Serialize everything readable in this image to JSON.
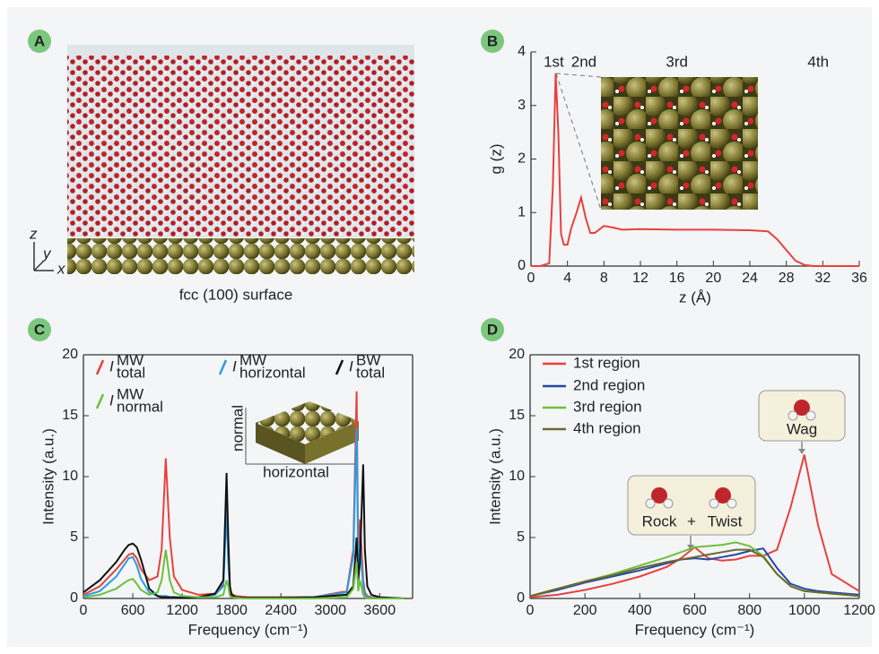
{
  "panels": {
    "labels": [
      "A",
      "B",
      "C",
      "D"
    ],
    "a": {
      "caption": "fcc (100) surface",
      "axes": [
        "z",
        "y",
        "x"
      ]
    }
  },
  "chart_data": [
    {
      "type": "line",
      "xlabel": "z (Å)",
      "ylabel": "g (z)",
      "color": "#e8413c",
      "annotations": [
        "1st",
        "2nd",
        "3rd",
        "4th"
      ],
      "x": [
        0,
        1,
        2,
        2.4,
        2.7,
        3.0,
        3.3,
        3.6,
        4.0,
        4.4,
        5.0,
        5.5,
        6.0,
        6.5,
        7.0,
        8.0,
        9.0,
        10,
        12,
        16,
        20,
        24,
        26,
        27,
        28,
        29,
        30,
        31,
        32,
        36
      ],
      "values": [
        0,
        0,
        0.05,
        1.5,
        3.6,
        2.5,
        0.6,
        0.4,
        0.4,
        0.7,
        1.0,
        1.28,
        0.9,
        0.62,
        0.62,
        0.75,
        0.72,
        0.68,
        0.69,
        0.68,
        0.68,
        0.67,
        0.65,
        0.5,
        0.3,
        0.1,
        0.02,
        0,
        0,
        0
      ],
      "xlim": [
        0,
        36
      ],
      "xticks": [
        0,
        4,
        8,
        12,
        16,
        20,
        24,
        28,
        32,
        36
      ],
      "ylim": [
        0,
        4
      ],
      "yticks": [
        0,
        1,
        2,
        3,
        4
      ]
    },
    {
      "type": "line",
      "xlabel": "Frequency (cm⁻¹)",
      "ylabel": "Intensity (a.u.)",
      "inset_labels": [
        "normal",
        "horizontal"
      ],
      "x": [
        0,
        200,
        400,
        500,
        550,
        600,
        650,
        700,
        800,
        900,
        950,
        1000,
        1050,
        1100,
        1200,
        1400,
        1600,
        1700,
        1740,
        1760,
        1780,
        1800,
        1850,
        2000,
        2400,
        2800,
        3200,
        3280,
        3320,
        3340,
        3360,
        3400,
        3420,
        3450,
        3500,
        3600,
        3900
      ],
      "series": [
        {
          "name": "I",
          "superscript": "MW",
          "subscript": "total",
          "color": "#e8413c",
          "values": [
            0.3,
            1,
            2.4,
            3.2,
            3.6,
            3.7,
            3.3,
            2.4,
            1.5,
            1.8,
            4,
            11.5,
            5,
            1.8,
            0.7,
            0.3,
            0.4,
            1.2,
            8.8,
            4,
            1,
            0.4,
            0.2,
            0.1,
            0.1,
            0.1,
            0.6,
            4,
            17,
            3,
            6.5,
            1.5,
            0.5,
            0.2,
            0.1,
            0.05,
            0
          ]
        },
        {
          "name": "I",
          "superscript": "MW",
          "subscript": "horizontal",
          "color": "#2a9de0",
          "values": [
            0.2,
            0.6,
            1.8,
            2.8,
            3.3,
            3.4,
            2.7,
            1.6,
            0.5,
            0.2,
            0.2,
            0.2,
            0.1,
            0.1,
            0.1,
            0.1,
            0.3,
            1,
            7.2,
            3,
            0.6,
            0.2,
            0.1,
            0.05,
            0.05,
            0.1,
            0.5,
            3.5,
            14,
            2.5,
            4.5,
            1,
            0.3,
            0.1,
            0.05,
            0,
            0
          ]
        },
        {
          "name": "I",
          "superscript": "BW",
          "subscript": "total",
          "color": "#111111",
          "values": [
            0.5,
            1.5,
            3,
            4,
            4.4,
            4.5,
            4.2,
            3.2,
            0.8,
            0.2,
            0.1,
            0.1,
            0.1,
            0.1,
            0.05,
            0.1,
            0.4,
            1.5,
            10.3,
            5,
            1,
            0.3,
            0.1,
            0.05,
            0.05,
            0.1,
            0.3,
            1,
            5,
            1.5,
            3,
            11,
            4,
            1,
            0.3,
            0.1,
            0
          ]
        },
        {
          "name": "I",
          "superscript": "MW",
          "subscript": "normal",
          "color": "#6cbf3c",
          "values": [
            0.1,
            0.3,
            0.8,
            1.3,
            1.5,
            1.6,
            1.2,
            0.7,
            0.3,
            0.5,
            1.5,
            4,
            1.5,
            0.5,
            0.2,
            0.1,
            0.1,
            0.3,
            1.5,
            1,
            0.2,
            0.1,
            0.05,
            0,
            0,
            0,
            0.1,
            0.8,
            3,
            0.6,
            1.5,
            0.3,
            0.1,
            0,
            0,
            0,
            0
          ]
        }
      ],
      "xlim": [
        0,
        4000
      ],
      "xticks": [
        0,
        600,
        1200,
        1800,
        2400,
        3000,
        3600
      ],
      "ylim": [
        0,
        20
      ],
      "yticks": [
        0,
        5,
        10,
        15,
        20
      ]
    },
    {
      "type": "line",
      "xlabel": "Frequency (cm⁻¹)",
      "ylabel": "Intensity (a.u.)",
      "annotations": [
        "Rock",
        "+",
        "Twist",
        "Wag"
      ],
      "x": [
        0,
        100,
        200,
        300,
        400,
        500,
        550,
        600,
        650,
        700,
        750,
        800,
        850,
        900,
        950,
        1000,
        1050,
        1100,
        1200
      ],
      "series": [
        {
          "name": "1st region",
          "color": "#e8413c",
          "values": [
            0.1,
            0.3,
            0.7,
            1.2,
            1.8,
            2.6,
            3.3,
            4.2,
            3.3,
            3.1,
            3.2,
            3.5,
            3.5,
            4,
            7.5,
            11.8,
            6,
            2,
            0.6
          ]
        },
        {
          "name": "2nd region",
          "color": "#2448a8",
          "values": [
            0.2,
            0.7,
            1.3,
            1.8,
            2.3,
            2.9,
            3.2,
            3.3,
            3.2,
            3.4,
            3.6,
            3.9,
            4.1,
            2.5,
            1.2,
            0.8,
            0.6,
            0.5,
            0.3
          ]
        },
        {
          "name": "3rd region",
          "color": "#6cbf3c",
          "values": [
            0.2,
            0.8,
            1.4,
            2,
            2.7,
            3.4,
            3.8,
            4.2,
            4.3,
            4.4,
            4.6,
            4.3,
            3.5,
            2,
            1,
            0.6,
            0.5,
            0.4,
            0.2
          ]
        },
        {
          "name": "4th region",
          "color": "#6b6a2a",
          "values": [
            0.2,
            0.8,
            1.4,
            1.9,
            2.5,
            3,
            3.2,
            3.4,
            3.6,
            3.8,
            4.0,
            4.0,
            3.4,
            2,
            1,
            0.6,
            0.5,
            0.4,
            0.2
          ]
        }
      ],
      "xlim": [
        0,
        1200
      ],
      "xticks": [
        0,
        200,
        400,
        600,
        800,
        1000,
        1200
      ],
      "ylim": [
        0,
        20
      ],
      "yticks": [
        0,
        5,
        10,
        15,
        20
      ]
    }
  ]
}
